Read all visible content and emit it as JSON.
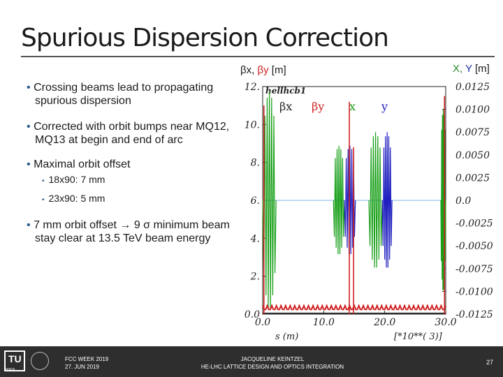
{
  "slide": {
    "title": "Spurious Dispersion Correction",
    "legend_beta": {
      "bx": "βx,",
      "by": "βy",
      "unit": "[m]"
    },
    "legend_xy": {
      "x": "X,",
      "y": "Y",
      "unit": "[m]"
    }
  },
  "bullets": [
    {
      "text": "Crossing beams lead to propagating spurious dispersion"
    },
    {
      "text": "Corrected with orbit bumps near MQ12, MQ13 at begin and end of arc"
    },
    {
      "text": "Maximal orbit offset"
    },
    {
      "text": "7 mm orbit offset → 9 σ minimum beam stay clear at 13.5 TeV beam energy"
    }
  ],
  "sub_bullets": [
    "18x90: 7 mm",
    "23x90: 5 mm"
  ],
  "bullet_marker": "•",
  "chart_data": {
    "type": "line",
    "title": "hellhcb1",
    "legend": [
      "βx",
      "βy",
      "x",
      "y"
    ],
    "colors": {
      "betax": "#222222",
      "betay": "#d02020",
      "x": "#1aa01a",
      "y": "#2020c0",
      "axis": "#7fb4e6"
    },
    "xlabel": "s (m)",
    "xscale_label": "[*10**( 3)]",
    "xlim": [
      0,
      30
    ],
    "x_ticks": [
      "0.0",
      "10.0",
      "20.0",
      "30.0"
    ],
    "ylim_left": [
      0,
      12
    ],
    "y_ticks_left": [
      "0.0",
      "2.",
      "4.",
      "6.",
      "8.",
      "10.",
      "12."
    ],
    "ylim_right": [
      -0.0125,
      0.0125
    ],
    "y_ticks_right": [
      "-0.0125",
      "-0.0100",
      "-0.0075",
      "-0.0050",
      "-0.0025",
      "0.0",
      "0.0025",
      "0.0050",
      "0.0075",
      "0.0100",
      "0.0125"
    ],
    "bumps": [
      {
        "series": "x",
        "start": 0.0,
        "end": 2.2,
        "amplitude": 0.012
      },
      {
        "series": "x",
        "start": 11.6,
        "end": 13.4,
        "amplitude": 0.006
      },
      {
        "series": "y",
        "start": 13.4,
        "end": 15.2,
        "amplitude": 0.006
      },
      {
        "series": "x",
        "start": 17.4,
        "end": 19.6,
        "amplitude": 0.0075
      },
      {
        "series": "y",
        "start": 19.6,
        "end": 21.2,
        "amplitude": 0.0075
      },
      {
        "series": "x",
        "start": 29.2,
        "end": 30.0,
        "amplitude": 0.01
      }
    ],
    "beta_spikes": [
      {
        "s": 0.2,
        "value": 11.0
      },
      {
        "s": 14.2,
        "value": 11.2
      },
      {
        "s": 14.9,
        "value": 8.8
      },
      {
        "s": 29.8,
        "value": 11.5
      }
    ],
    "beta_baseline": 0.2
  },
  "footer": {
    "logo_text": "TU",
    "logo_sub": "WIEN",
    "event": "FCC WEEK 2019",
    "date": "27. JUN 2019",
    "author": "JACQUELINE KEINTZEL",
    "subtitle": "HE-LHC LATTICE DESIGN AND OPTICS INTEGRATION",
    "page": "27"
  }
}
